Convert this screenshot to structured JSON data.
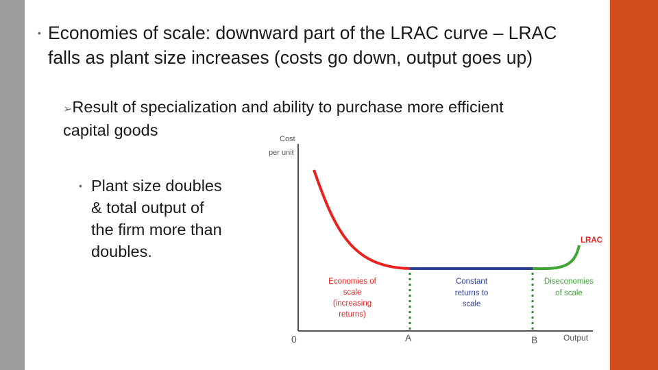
{
  "slide": {
    "bullet1": {
      "bold": "Economies of scale:",
      "rest": " downward part of the LRAC curve – LRAC falls as plant size increases  (costs go down, output goes up)"
    },
    "bullet2": "Result of specialization and ability to purchase more efficient capital goods",
    "bullet3": "Plant size doubles & total output of the firm more than doubles."
  },
  "diagram": {
    "y_axis_label_line1": "Cost",
    "y_axis_label_line2": "per unit",
    "x_axis_label": "Output",
    "origin_label": "0",
    "point_a": "A",
    "point_b": "B",
    "curve_label": "LRAC",
    "region1": [
      "Economies of",
      "scale",
      "(increasing",
      "returns)"
    ],
    "region2": [
      "Constant",
      "returns to",
      "scale"
    ],
    "region3": [
      "Diseconomies",
      "of scale"
    ],
    "colors": {
      "economies": "#e8231f",
      "constant": "#2d3e96",
      "diseconomies": "#3fa535",
      "dotted": "#2c8a2c",
      "region_label_red": "#e8231f",
      "region_label_blue": "#2d3e96",
      "curve_label": "#e8231f"
    }
  }
}
